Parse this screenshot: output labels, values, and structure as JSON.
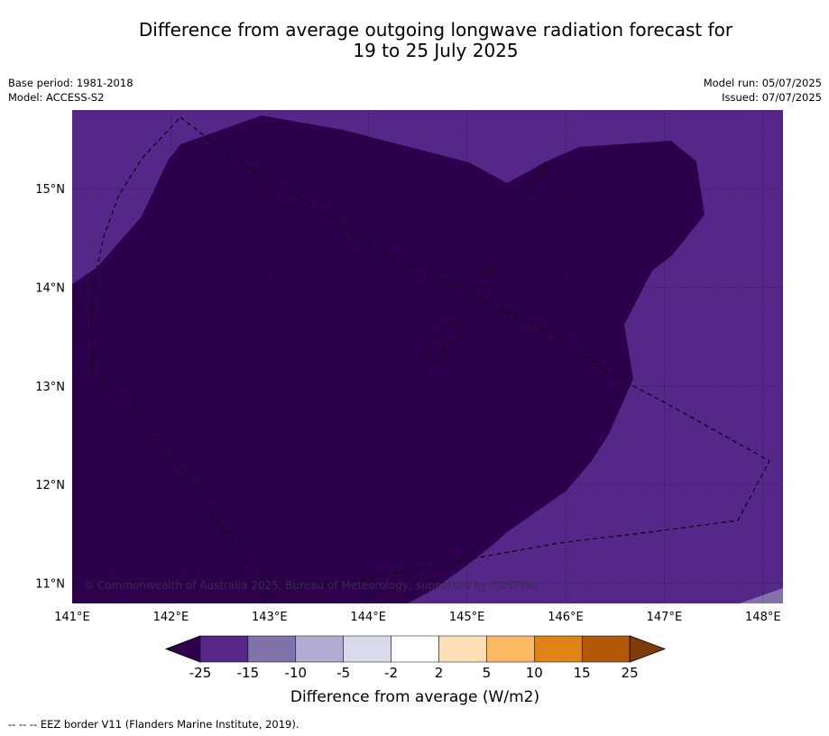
{
  "title_line1": "Difference from average outgoing longwave radiation forecast for",
  "title_line2": "19 to 25 July 2025",
  "meta_left": {
    "base_period": "Base period: 1981-2018",
    "model": "Model: ACCESS-S2"
  },
  "meta_right": {
    "model_run": "Model run: 05/07/2025",
    "issued": "Issued: 07/07/2025"
  },
  "map": {
    "lon_labels": [
      "141°E",
      "142°E",
      "143°E",
      "144°E",
      "145°E",
      "146°E",
      "147°E",
      "148°E"
    ],
    "lat_labels": [
      "15°N",
      "14°N",
      "13°N",
      "12°N",
      "11°N"
    ],
    "copyright": "© Commonwealth of Australia 2025, Bureau of Meteorology, supported by COSPPac",
    "colors": {
      "lt_minus25": "#2d004b",
      "minus25_to_minus15": "#542788",
      "minus15_to_minus10": "#8073ac",
      "minus10_to_minus5": "#b2abd2",
      "minus5_to_minus2": "#d8daeb",
      "minus2_to_2": "#ffffff",
      "2_to_5": "#fee0b6",
      "5_to_10": "#fdb863",
      "10_to_15": "#e08214",
      "15_to_25": "#b35806",
      "gt_25": "#7f3b08"
    }
  },
  "colorbar": {
    "tick_labels": [
      "-25",
      "-15",
      "-10",
      "-5",
      "-2",
      "2",
      "5",
      "10",
      "15",
      "25"
    ],
    "label": "Difference from average (W/m2)"
  },
  "footnote": "-- -- -- EEZ border V11 (Flanders Marine Institute, 2019)."
}
